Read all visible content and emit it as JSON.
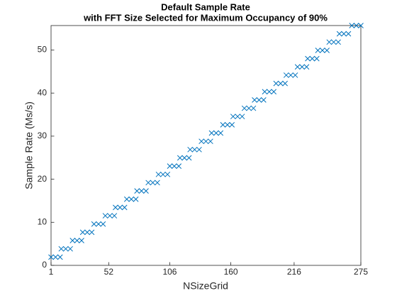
{
  "chart_data": {
    "type": "scatter",
    "title": "Default Sample Rate",
    "subtitle": "with FFT Size Selected for Maximum Occupancy of 90%",
    "xlabel": "NSizeGrid",
    "ylabel": "Sample Rate (Ms/s)",
    "marker": "x",
    "color": "#0072bd",
    "x": [
      1,
      5,
      9,
      10,
      14,
      18,
      20,
      24,
      28,
      29,
      33,
      37,
      39,
      43,
      47,
      49,
      53,
      57,
      58,
      62,
      66,
      68,
      72,
      76,
      77,
      81,
      85,
      87,
      91,
      95,
      96,
      100,
      104,
      106,
      110,
      114,
      115,
      119,
      123,
      124,
      128,
      132,
      134,
      138,
      142,
      143,
      147,
      151,
      153,
      157,
      161,
      162,
      166,
      170,
      172,
      176,
      180,
      181,
      185,
      189,
      190,
      194,
      198,
      200,
      204,
      208,
      209,
      213,
      217,
      219,
      223,
      227,
      228,
      232,
      236,
      237,
      241,
      245,
      247,
      251,
      255,
      256,
      260,
      264,
      267,
      271,
      275
    ],
    "values": [
      1.92,
      1.92,
      1.92,
      3.84,
      3.84,
      3.84,
      5.76,
      5.76,
      5.76,
      7.68,
      7.68,
      7.68,
      9.6,
      9.6,
      9.6,
      11.52,
      11.52,
      11.52,
      13.44,
      13.44,
      13.44,
      15.36,
      15.36,
      15.36,
      17.28,
      17.28,
      17.28,
      19.2,
      19.2,
      19.2,
      21.12,
      21.12,
      21.12,
      23.04,
      23.04,
      23.04,
      24.96,
      24.96,
      24.96,
      26.88,
      26.88,
      26.88,
      28.8,
      28.8,
      28.8,
      30.72,
      30.72,
      30.72,
      32.64,
      32.64,
      32.64,
      34.56,
      34.56,
      34.56,
      36.48,
      36.48,
      36.48,
      38.4,
      38.4,
      38.4,
      40.32,
      40.32,
      40.32,
      42.24,
      42.24,
      42.24,
      44.16,
      44.16,
      44.16,
      46.08,
      46.08,
      46.08,
      48,
      48,
      48,
      49.92,
      49.92,
      49.92,
      51.84,
      51.84,
      51.84,
      53.76,
      53.76,
      53.76,
      55.68,
      55.68,
      55.68
    ],
    "xlim": [
      1,
      275
    ],
    "xticks": [
      1,
      52,
      106,
      160,
      216,
      275
    ],
    "ylim": [
      0,
      55.68
    ],
    "yticks": [
      0,
      10,
      20,
      30,
      40,
      50
    ],
    "grid": false
  }
}
